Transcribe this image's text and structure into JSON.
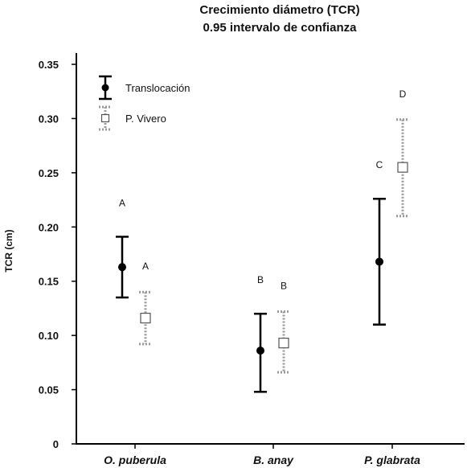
{
  "chart_data": {
    "type": "scatter",
    "title_line1": "Crecimiento diámetro (TCR)",
    "title_line2": "0.95 intervalo de confianza",
    "ylabel": "TCR (cm)",
    "xlabel": "",
    "ylim": [
      0,
      0.35
    ],
    "yticks": [
      {
        "value": 0,
        "label": "0"
      },
      {
        "value": 0.05,
        "label": "0.05"
      },
      {
        "value": 0.1,
        "label": "0.10"
      },
      {
        "value": 0.15,
        "label": "0.15"
      },
      {
        "value": 0.2,
        "label": "0.20"
      },
      {
        "value": 0.25,
        "label": "0.25"
      },
      {
        "value": 0.3,
        "label": "0.30"
      },
      {
        "value": 0.35,
        "label": "0.35"
      }
    ],
    "categories": [
      "O. puberula",
      "B. anay",
      "P. glabrata"
    ],
    "grid": false,
    "legend_position": "top-left",
    "series": [
      {
        "name": "Translocación",
        "marker": "filled-circle",
        "line_style": "solid",
        "color": "#000000",
        "means": [
          0.163,
          0.086,
          0.168
        ],
        "lower": [
          0.135,
          0.048,
          0.11
        ],
        "upper": [
          0.191,
          0.12,
          0.226
        ],
        "group_labels": [
          "A",
          "B",
          "C"
        ]
      },
      {
        "name": "P. Vivero",
        "marker": "open-square",
        "line_style": "dotted",
        "color": "#9a9a9a",
        "means": [
          0.116,
          0.093,
          0.255
        ],
        "lower": [
          0.092,
          0.066,
          0.21
        ],
        "upper": [
          0.14,
          0.122,
          0.299
        ],
        "group_labels": [
          "A",
          "B",
          "D"
        ]
      }
    ]
  }
}
